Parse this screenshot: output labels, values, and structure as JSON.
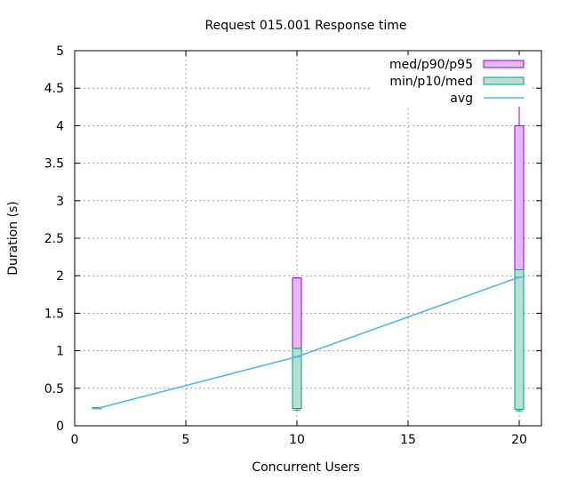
{
  "chart_data": {
    "type": "boxplot",
    "title": "Request 015.001 Response time",
    "xlabel": "Concurrent Users",
    "ylabel": "Duration (s)",
    "xlim": [
      0,
      21
    ],
    "ylim": [
      0,
      5
    ],
    "grid": true,
    "legend_position": "top-right",
    "x_ticks": [
      {
        "value": 0,
        "label": "0"
      },
      {
        "value": 5,
        "label": "5"
      },
      {
        "value": 10,
        "label": "10"
      },
      {
        "value": 15,
        "label": "15"
      },
      {
        "value": 20,
        "label": "20"
      }
    ],
    "y_ticks": [
      {
        "value": 0,
        "label": "0"
      },
      {
        "value": 0.5,
        "label": "0.5"
      },
      {
        "value": 1,
        "label": "1"
      },
      {
        "value": 1.5,
        "label": "1.5"
      },
      {
        "value": 2,
        "label": "2"
      },
      {
        "value": 2.5,
        "label": "2.5"
      },
      {
        "value": 3,
        "label": "3"
      },
      {
        "value": 3.5,
        "label": "3.5"
      },
      {
        "value": 4,
        "label": "4"
      },
      {
        "value": 4.5,
        "label": "4.5"
      },
      {
        "value": 5,
        "label": "5"
      }
    ],
    "series": [
      {
        "name": "med/p90/p95",
        "color": "#9400d3",
        "fill": "#e8b8f5"
      },
      {
        "name": "min/p10/med",
        "color": "#009e73",
        "fill": "#b3e2d5"
      },
      {
        "name": "avg",
        "color": "#56b4e9"
      }
    ],
    "boxes": [
      {
        "x": 1,
        "min": 0.23,
        "p10": 0.23,
        "med": 0.24,
        "p90": 0.24,
        "p95": 0.24,
        "avg": 0.23
      },
      {
        "x": 10,
        "min": 0.21,
        "p10": 0.23,
        "med": 1.03,
        "p90": 1.97,
        "p95": 1.97,
        "avg": 0.92
      },
      {
        "x": 20,
        "min": 0.2,
        "p10": 0.22,
        "med": 2.08,
        "p90": 4.0,
        "p95": 4.51,
        "avg": 1.98
      }
    ]
  }
}
